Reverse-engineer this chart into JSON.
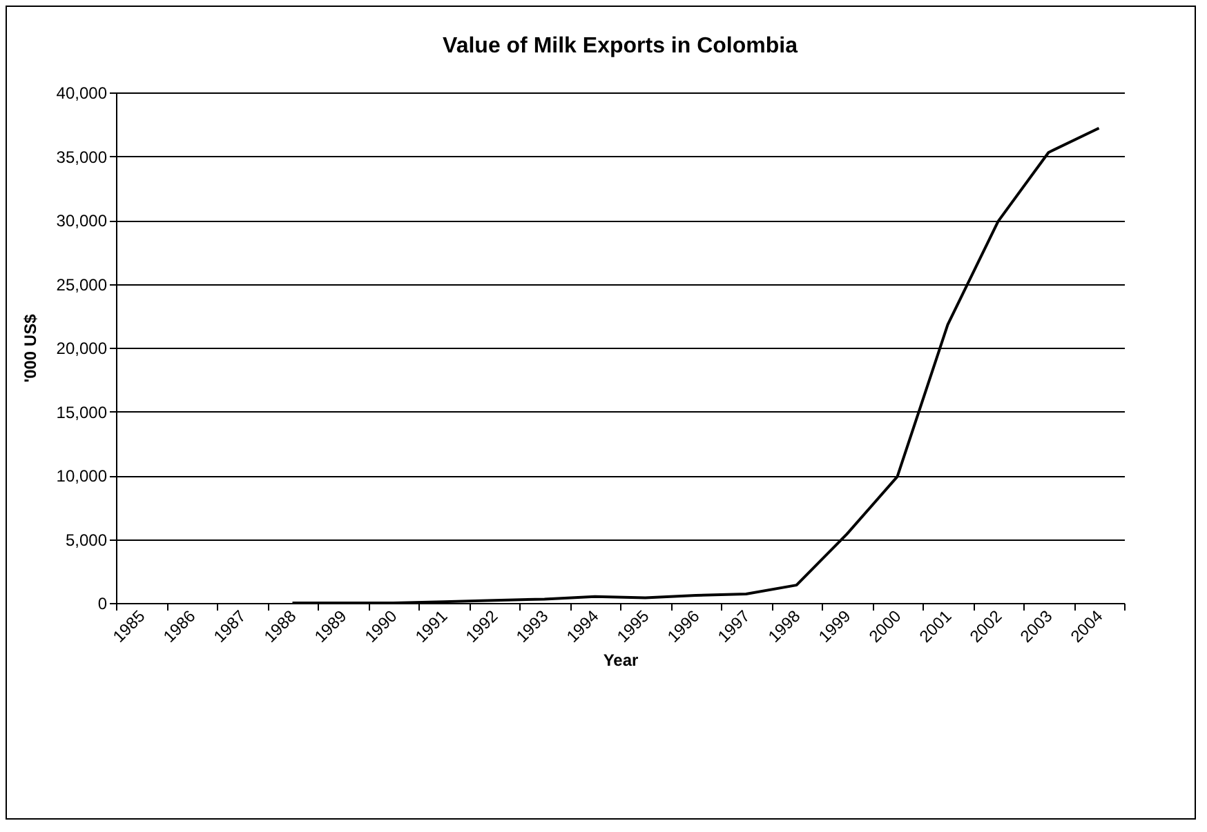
{
  "chart_data": {
    "type": "line",
    "title": "Value of Milk Exports in Colombia",
    "xlabel": "Year",
    "ylabel": "'000 US$",
    "categories": [
      "1985",
      "1986",
      "1987",
      "1988",
      "1989",
      "1990",
      "1991",
      "1992",
      "1993",
      "1994",
      "1995",
      "1996",
      "1997",
      "1998",
      "1999",
      "2000",
      "2001",
      "2002",
      "2003",
      "2004"
    ],
    "series": [
      {
        "color": "#000000",
        "values": [
          null,
          null,
          null,
          0,
          0,
          0,
          100,
          200,
          300,
          500,
          400,
          600,
          700,
          1400,
          5400,
          9900,
          21800,
          29900,
          35300,
          37200
        ]
      }
    ],
    "ylim": [
      0,
      40000
    ],
    "yticks": [
      {
        "value": 0,
        "label": "0"
      },
      {
        "value": 5000,
        "label": "5,000"
      },
      {
        "value": 10000,
        "label": "10,000"
      },
      {
        "value": 15000,
        "label": "15,000"
      },
      {
        "value": 20000,
        "label": "20,000"
      },
      {
        "value": 25000,
        "label": "25,000"
      },
      {
        "value": 30000,
        "label": "30,000"
      },
      {
        "value": 35000,
        "label": "35,000"
      },
      {
        "value": 40000,
        "label": "40,000"
      }
    ],
    "grid": "y",
    "marker": "none",
    "line_style": "solid"
  }
}
